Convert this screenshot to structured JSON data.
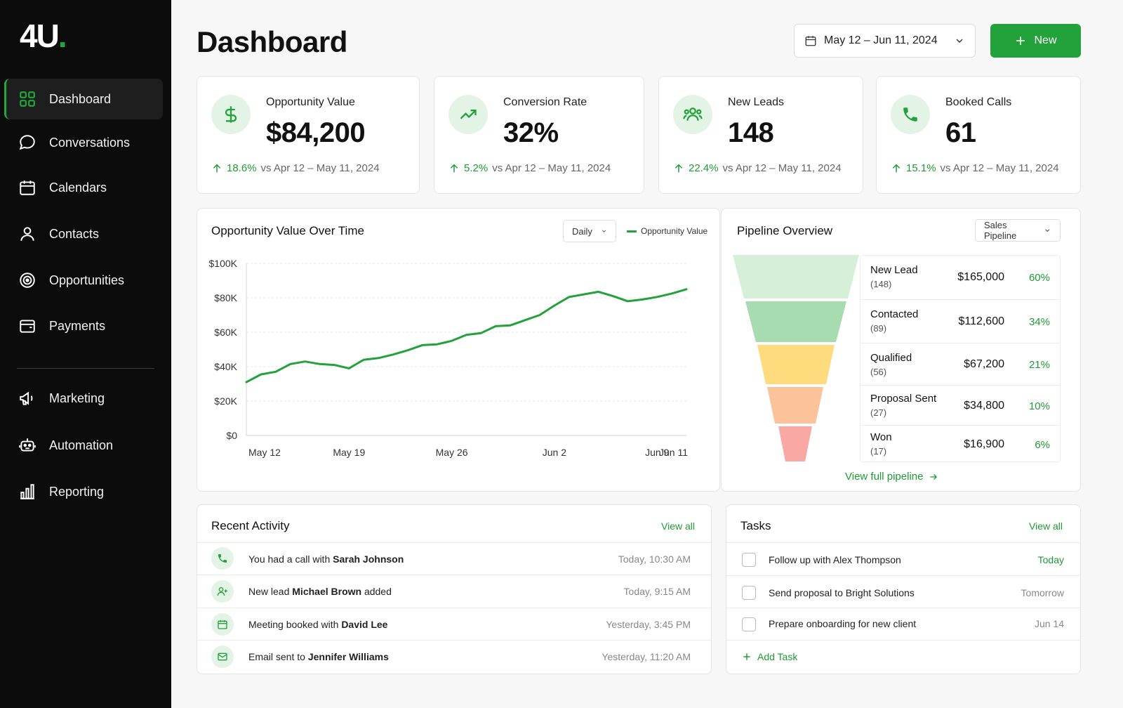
{
  "app": {
    "logo_text": "4U",
    "logo_dot": "."
  },
  "sidebar": {
    "items": [
      {
        "label": "Dashboard",
        "icon": "grid-icon",
        "active": true
      },
      {
        "label": "Conversations",
        "icon": "chat-bubble-icon"
      },
      {
        "label": "Calendars",
        "icon": "calendar-icon"
      },
      {
        "label": "Contacts",
        "icon": "user-icon"
      },
      {
        "label": "Opportunities",
        "icon": "target-icon"
      },
      {
        "label": "Payments",
        "icon": "wallet-icon"
      },
      {
        "label": "Marketing",
        "icon": "megaphone-icon"
      },
      {
        "label": "Automation",
        "icon": "robot-icon"
      },
      {
        "label": "Reporting",
        "icon": "bar-chart-icon"
      }
    ]
  },
  "header": {
    "title": "Dashboard",
    "date_range": "May 12 – Jun 11, 2024",
    "new_button": "New"
  },
  "kpis": [
    {
      "label": "Opportunity Value",
      "value": "$84,200",
      "change": "18.6%",
      "compare": "vs Apr 12 – May 11, 2024",
      "icon": "dollar-icon"
    },
    {
      "label": "Conversion Rate",
      "value": "32%",
      "change": "5.2%",
      "compare": "vs Apr 12 – May 11, 2024",
      "icon": "trending-up-icon"
    },
    {
      "label": "New Leads",
      "value": "148",
      "change": "22.4%",
      "compare": "vs Apr 12 – May 11, 2024",
      "icon": "users-icon"
    },
    {
      "label": "Booked Calls",
      "value": "61",
      "change": "15.1%",
      "compare": "vs Apr 12 – May 11, 2024",
      "icon": "phone-icon"
    }
  ],
  "opportunity_chart": {
    "title": "Opportunity Value Over Time",
    "interval": "Daily",
    "legend": "Opportunity Value"
  },
  "chart_data": {
    "type": "line",
    "title": "Opportunity Value Over Time",
    "xlabel": "",
    "ylabel": "",
    "x_tick_labels": [
      "May 12",
      "May 19",
      "May 26",
      "Jun 2",
      "Jun 9",
      "Jun 11"
    ],
    "y_tick_labels": [
      "$0",
      "$20K",
      "$40K",
      "$60K",
      "$80K",
      "$100K"
    ],
    "ylim": [
      0,
      100000
    ],
    "grid": true,
    "legend_position": "top-right",
    "series": [
      {
        "name": "Opportunity Value",
        "color": "#23a13a",
        "x": [
          "May 12",
          "May 13",
          "May 14",
          "May 15",
          "May 16",
          "May 17",
          "May 18",
          "May 19",
          "May 20",
          "May 21",
          "May 22",
          "May 23",
          "May 24",
          "May 25",
          "May 26",
          "May 27",
          "May 28",
          "May 29",
          "May 30",
          "May 31",
          "Jun 1",
          "Jun 2",
          "Jun 3",
          "Jun 4",
          "Jun 5",
          "Jun 6",
          "Jun 7",
          "Jun 8",
          "Jun 9",
          "Jun 10",
          "Jun 11"
        ],
        "values": [
          31000,
          35500,
          37000,
          41500,
          43000,
          41500,
          41000,
          39000,
          44000,
          45000,
          47000,
          49500,
          52500,
          53000,
          55000,
          58500,
          59500,
          63500,
          64000,
          67000,
          70000,
          75500,
          80500,
          82000,
          83500,
          81000,
          78000,
          79000,
          80500,
          82500,
          85000
        ]
      }
    ]
  },
  "pipeline": {
    "title": "Pipeline Overview",
    "selector": "Sales Pipeline",
    "stages": [
      {
        "name": "New Lead",
        "count": "(148)",
        "amount": "$165,000",
        "pct": "60%",
        "color": "#d5efd8"
      },
      {
        "name": "Contacted",
        "count": "(89)",
        "amount": "$112,600",
        "pct": "34%",
        "color": "#a6dcaf"
      },
      {
        "name": "Qualified",
        "count": "(56)",
        "amount": "$67,200",
        "pct": "21%",
        "color": "#fedc7e"
      },
      {
        "name": "Proposal Sent",
        "count": "(27)",
        "amount": "$34,800",
        "pct": "10%",
        "color": "#fcc39a"
      },
      {
        "name": "Won",
        "count": "(17)",
        "amount": "$16,900",
        "pct": "6%",
        "color": "#f9a8a4"
      }
    ],
    "link": "View full pipeline"
  },
  "activity": {
    "title": "Recent Activity",
    "view_all": "View all",
    "items": [
      {
        "icon": "phone-icon",
        "pre": "You had a call with ",
        "bold": "Sarah Johnson",
        "post": "",
        "time": "Today, 10:30 AM"
      },
      {
        "icon": "user-plus-icon",
        "pre": "New lead ",
        "bold": "Michael Brown",
        "post": " added",
        "time": "Today, 9:15 AM"
      },
      {
        "icon": "calendar-icon",
        "pre": "Meeting booked with ",
        "bold": "David Lee",
        "post": "",
        "time": "Yesterday, 3:45 PM"
      },
      {
        "icon": "mail-icon",
        "pre": "Email sent to ",
        "bold": "Jennifer Williams",
        "post": "",
        "time": "Yesterday, 11:20 AM"
      }
    ]
  },
  "tasks": {
    "title": "Tasks",
    "view_all": "View all",
    "items": [
      {
        "text": "Follow up with Alex Thompson",
        "due": "Today"
      },
      {
        "text": "Send proposal to Bright Solutions",
        "due": "Tomorrow"
      },
      {
        "text": "Prepare onboarding for new client",
        "due": "Jun 14"
      }
    ],
    "add": "Add Task"
  },
  "colors": {
    "accent": "#23a13a",
    "sidebar_bg": "#0c0c0c",
    "page_bg": "#f7f7f7",
    "accent_soft": "#e3f4e6"
  }
}
